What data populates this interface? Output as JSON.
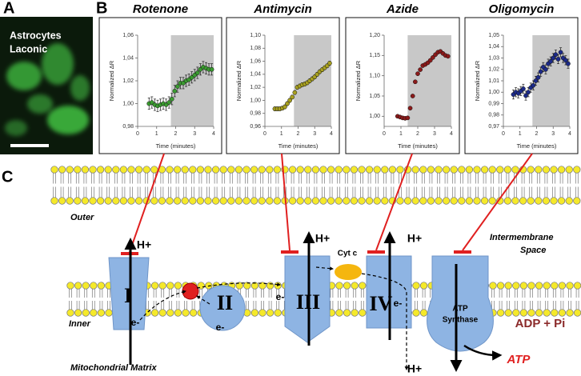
{
  "panel_labels": [
    "A",
    "B",
    "C"
  ],
  "image_panel": {
    "caption": [
      "Astrocytes",
      "Laconic"
    ]
  },
  "chart_data": [
    {
      "type": "scatter",
      "title": "Rotenone",
      "x_label": "Time (minutes)",
      "y_label": "Normalized ΔR",
      "xlim": [
        0,
        4
      ],
      "xticks": [
        0,
        1,
        2,
        3,
        4
      ],
      "ylim": [
        0.98,
        1.06
      ],
      "yticks": [
        {
          "value": 0.98,
          "label": "0,98"
        },
        {
          "value": 1.0,
          "label": "1,00"
        },
        {
          "value": 1.02,
          "label": "1,02"
        },
        {
          "value": 1.04,
          "label": "1,04"
        },
        {
          "value": 1.06,
          "label": "1,06"
        }
      ],
      "shaded_x": [
        1.75,
        4
      ],
      "series": [
        {
          "color": "#3a9a30",
          "x": [
            0.6,
            0.75,
            0.9,
            1.05,
            1.2,
            1.35,
            1.5,
            1.65,
            1.8,
            1.95,
            2.1,
            2.25,
            2.4,
            2.55,
            2.7,
            2.85,
            3.0,
            3.15,
            3.3,
            3.45,
            3.6,
            3.75,
            3.9
          ],
          "values": [
            1.0,
            1.001,
            0.999,
            0.998,
            0.999,
            1.0,
            0.999,
            1.001,
            1.004,
            1.011,
            1.015,
            1.018,
            1.018,
            1.02,
            1.021,
            1.023,
            1.025,
            1.027,
            1.03,
            1.032,
            1.031,
            1.03,
            1.03
          ],
          "errors": [
            0.005,
            0.005,
            0.005,
            0.005,
            0.005,
            0.005,
            0.005,
            0.005,
            0.005,
            0.005,
            0.005,
            0.005,
            0.005,
            0.005,
            0.005,
            0.005,
            0.005,
            0.005,
            0.005,
            0.005,
            0.005,
            0.005,
            0.005
          ]
        }
      ]
    },
    {
      "type": "scatter",
      "title": "Antimycin",
      "x_label": "Time (minutes)",
      "y_label": "Normalized ΔR",
      "xlim": [
        0,
        4
      ],
      "xticks": [
        0,
        1,
        2,
        3,
        4
      ],
      "ylim": [
        0.96,
        1.1
      ],
      "yticks": [
        {
          "value": 0.96,
          "label": "0,96"
        },
        {
          "value": 0.98,
          "label": "0,98"
        },
        {
          "value": 1.0,
          "label": "1,00"
        },
        {
          "value": 1.02,
          "label": "1,02"
        },
        {
          "value": 1.04,
          "label": "1,04"
        },
        {
          "value": 1.06,
          "label": "1,06"
        },
        {
          "value": 1.08,
          "label": "1,08"
        },
        {
          "value": 1.1,
          "label": "1,10"
        }
      ],
      "shaded_x": [
        1.75,
        4
      ],
      "series": [
        {
          "color": "#a8a020",
          "x": [
            0.6,
            0.75,
            0.9,
            1.05,
            1.2,
            1.35,
            1.5,
            1.65,
            1.8,
            1.95,
            2.1,
            2.25,
            2.4,
            2.55,
            2.7,
            2.85,
            3.0,
            3.15,
            3.3,
            3.45,
            3.6,
            3.75,
            3.9
          ],
          "values": [
            0.987,
            0.987,
            0.987,
            0.988,
            0.99,
            0.995,
            1.0,
            1.005,
            1.012,
            1.02,
            1.022,
            1.024,
            1.025,
            1.027,
            1.03,
            1.033,
            1.036,
            1.04,
            1.044,
            1.047,
            1.05,
            1.053,
            1.057
          ],
          "errors": [
            0.003,
            0.003,
            0.003,
            0.003,
            0.003,
            0.003,
            0.003,
            0.003,
            0.003,
            0.003,
            0.003,
            0.003,
            0.003,
            0.003,
            0.003,
            0.003,
            0.003,
            0.003,
            0.003,
            0.003,
            0.003,
            0.003,
            0.003
          ]
        }
      ]
    },
    {
      "type": "scatter",
      "title": "Azide",
      "x_label": "Time (minutes)",
      "y_label": "Normalized ΔR",
      "xlim": [
        0,
        4
      ],
      "xticks": [
        0,
        1,
        2,
        3,
        4
      ],
      "ylim": [
        0.975,
        1.2
      ],
      "yticks": [
        {
          "value": 1.0,
          "label": "1,00"
        },
        {
          "value": 1.05,
          "label": "1,05"
        },
        {
          "value": 1.1,
          "label": "1,10"
        },
        {
          "value": 1.15,
          "label": "1,15"
        },
        {
          "value": 1.2,
          "label": "1,20"
        }
      ],
      "shaded_x": [
        1.4,
        4
      ],
      "series": [
        {
          "color": "#8b1a1a",
          "x": [
            0.8,
            0.95,
            1.1,
            1.25,
            1.4,
            1.55,
            1.7,
            1.85,
            2.0,
            2.15,
            2.3,
            2.45,
            2.6,
            2.75,
            2.9,
            3.05,
            3.2,
            3.35,
            3.5,
            3.65,
            3.8
          ],
          "values": [
            1.0,
            0.998,
            0.996,
            0.995,
            0.996,
            1.02,
            1.05,
            1.085,
            1.105,
            1.115,
            1.125,
            1.128,
            1.132,
            1.138,
            1.145,
            1.152,
            1.158,
            1.16,
            1.155,
            1.15,
            1.148
          ],
          "errors": [
            0.002,
            0.002,
            0.002,
            0.002,
            0.002,
            0.002,
            0.002,
            0.002,
            0.002,
            0.002,
            0.002,
            0.002,
            0.002,
            0.002,
            0.002,
            0.002,
            0.002,
            0.002,
            0.002,
            0.002,
            0.002
          ]
        }
      ]
    },
    {
      "type": "scatter",
      "title": "Oligomycin",
      "x_label": "Time (minutes)",
      "y_label": "Normalized ΔR",
      "xlim": [
        0,
        4
      ],
      "xticks": [
        0,
        1,
        2,
        3,
        4
      ],
      "ylim": [
        0.97,
        1.05
      ],
      "yticks": [
        {
          "value": 0.97,
          "label": "0,97"
        },
        {
          "value": 0.98,
          "label": "0,98"
        },
        {
          "value": 0.99,
          "label": "0,99"
        },
        {
          "value": 1.0,
          "label": "1,00"
        },
        {
          "value": 1.01,
          "label": "1,01"
        },
        {
          "value": 1.02,
          "label": "1,02"
        },
        {
          "value": 1.03,
          "label": "1,03"
        },
        {
          "value": 1.04,
          "label": "1,04"
        },
        {
          "value": 1.05,
          "label": "1,05"
        }
      ],
      "shaded_x": [
        1.75,
        4
      ],
      "series": [
        {
          "color": "#1c2a8a",
          "x": [
            0.6,
            0.75,
            0.9,
            1.05,
            1.2,
            1.35,
            1.5,
            1.65,
            1.8,
            1.95,
            2.1,
            2.25,
            2.4,
            2.55,
            2.7,
            2.85,
            3.0,
            3.15,
            3.3,
            3.45,
            3.6,
            3.75,
            3.9
          ],
          "values": [
            0.998,
            1.0,
            0.999,
            1.001,
            1.003,
            0.997,
            1.0,
            1.004,
            1.006,
            1.01,
            1.013,
            1.018,
            1.022,
            1.02,
            1.025,
            1.027,
            1.03,
            1.033,
            1.029,
            1.035,
            1.03,
            1.028,
            1.025
          ],
          "errors": [
            0.004,
            0.004,
            0.004,
            0.004,
            0.004,
            0.004,
            0.004,
            0.004,
            0.004,
            0.004,
            0.004,
            0.004,
            0.004,
            0.004,
            0.004,
            0.004,
            0.004,
            0.004,
            0.004,
            0.004,
            0.004,
            0.004,
            0.004
          ]
        }
      ]
    }
  ],
  "diagram": {
    "outer": "Outer",
    "inner": "Inner",
    "matrix": "Mitochondrial Matrix",
    "intermembrane": [
      "Intermembrane",
      "Space"
    ],
    "complexes": [
      "I",
      "II",
      "III",
      "IV"
    ],
    "atp_synthase": [
      "ATP",
      "Synthase"
    ],
    "proton": "H+",
    "electron": "e-",
    "cyt_c": "Cyt c",
    "adp": "ADP + Pi",
    "atp": "ATP"
  }
}
